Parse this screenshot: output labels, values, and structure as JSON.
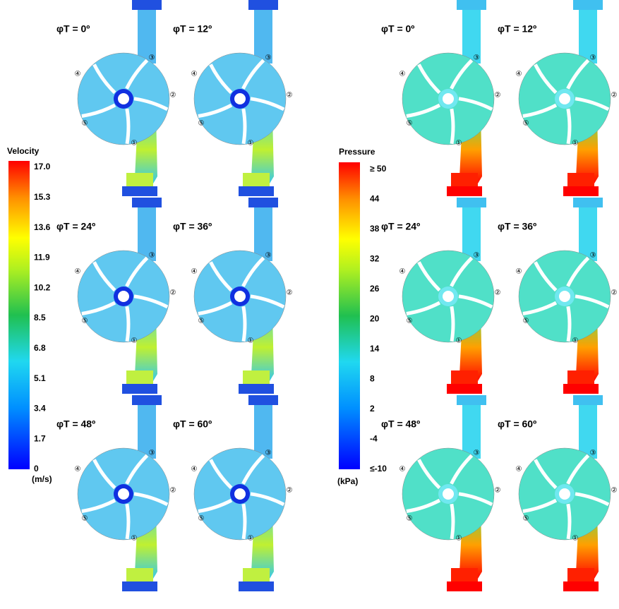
{
  "velocity_legend": {
    "title": "Velocity",
    "ticks": [
      "17.0",
      "15.3",
      "13.6",
      "11.9",
      "10.2",
      "8.5",
      "6.8",
      "5.1",
      "3.4",
      "1.7",
      "0"
    ],
    "unit": "(m/s)"
  },
  "pressure_legend": {
    "title": "Pressure",
    "ticks": [
      "≥ 50",
      "44",
      "38",
      "32",
      "26",
      "20",
      "14",
      "8",
      "2",
      "-4",
      "≤-10"
    ],
    "unit": "(kPa)"
  },
  "port_labels": [
    "①",
    "②",
    "③",
    "④",
    "⑤"
  ],
  "velocity_panels": [
    "φT = 0º",
    "φT = 12º",
    "φT = 24º",
    "φT = 36º",
    "φT = 48º",
    "φT = 60º"
  ],
  "pressure_panels": [
    "φT = 0º",
    "φT = 12º",
    "φT = 24º",
    "φT = 36º",
    "φT = 48º",
    "φT = 60º"
  ]
}
